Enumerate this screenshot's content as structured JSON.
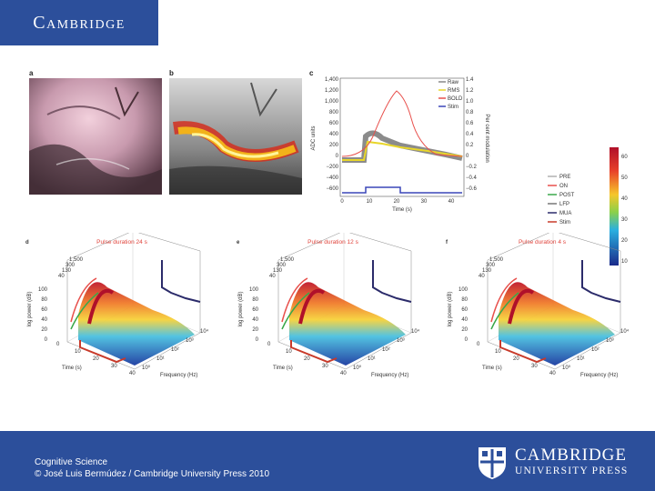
{
  "header": {
    "logo_text": "Cambridge"
  },
  "figure": {
    "panel_letters": [
      "a",
      "b",
      "c",
      "d",
      "e",
      "f"
    ],
    "panel_c": {
      "legend": [
        "Raw",
        "RMS",
        "BOLD",
        "Stim"
      ],
      "y_left_label": "ADC units",
      "y_right_label": "Per cent modulation",
      "x_label": "Time (s)",
      "y_left_ticks": [
        "1,400",
        "1,200",
        "1,000",
        "800",
        "600",
        "400",
        "200",
        "0",
        "−200",
        "−400",
        "−600"
      ],
      "y_right_ticks": [
        "1.4",
        "1.2",
        "1.0",
        "0.8",
        "0.6",
        "0.4",
        "0.2",
        "0",
        "−0.2",
        "−0.4",
        "−0.6"
      ],
      "x_ticks": [
        "0",
        "10",
        "20",
        "30",
        "40"
      ]
    },
    "legend_right": [
      "PRE",
      "ON",
      "POST",
      "LFP",
      "MUA",
      "Stim"
    ],
    "colorbar_ticks": [
      "60",
      "50",
      "40",
      "30",
      "20",
      "10"
    ],
    "panels_3d": [
      {
        "letter": "d",
        "title": "Pulse duration 24 s"
      },
      {
        "letter": "e",
        "title": "Pulse duration 12 s"
      },
      {
        "letter": "f",
        "title": "Pulse duration 4 s"
      }
    ],
    "axis_3d": {
      "z_label": "log power (dB)",
      "z_ticks": [
        "100",
        "80",
        "60",
        "40",
        "20",
        "0"
      ],
      "time_label": "Time (s)",
      "time_ticks": [
        "0",
        "10",
        "20",
        "30",
        "40"
      ],
      "freq_label": "Frequency (Hz)",
      "freq_ticks": [
        "10⁰",
        "10¹",
        "10²",
        "10³",
        "10⁴"
      ],
      "top_ticks": [
        "1,500",
        "300",
        "130",
        "40"
      ]
    }
  },
  "footer": {
    "line1": "Cognitive Science",
    "line2": "© José Luis Bermúdez / Cambridge University Press 2010",
    "logo_line1": "CAMBRIDGE",
    "logo_line2": "UNIVERSITY PRESS"
  }
}
